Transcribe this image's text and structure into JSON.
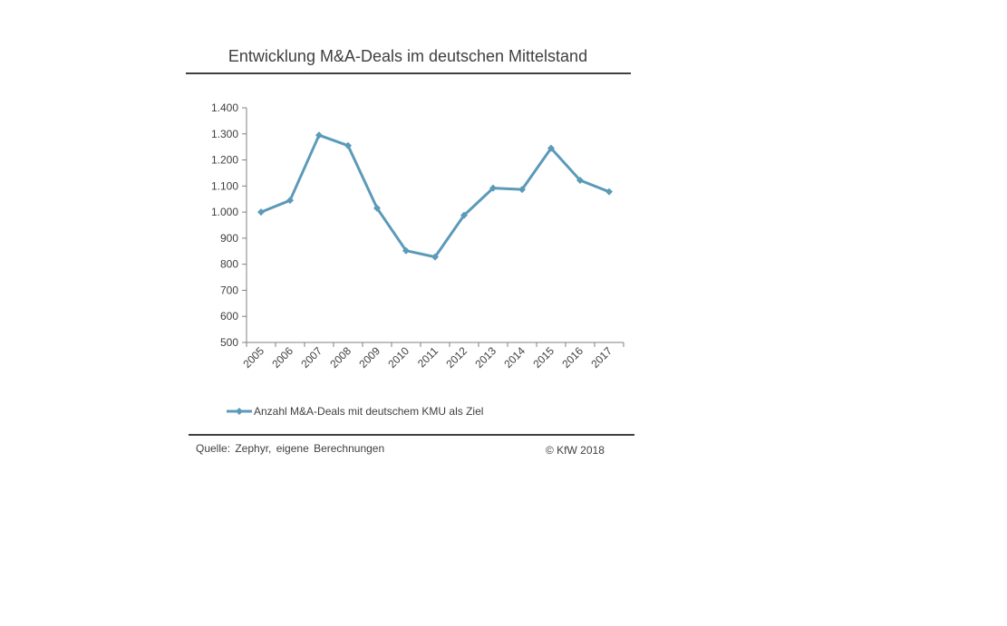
{
  "chart_data": {
    "type": "line",
    "title": "Entwicklung M&A-Deals im deutschen Mittelstand",
    "xlabel": "",
    "ylabel": "",
    "categories": [
      "2005",
      "2006",
      "2007",
      "2008",
      "2009",
      "2010",
      "2011",
      "2012",
      "2013",
      "2014",
      "2015",
      "2016",
      "2017"
    ],
    "series": [
      {
        "name": "Anzahl M&A-Deals mit deutschem KMU als Ziel",
        "values": [
          1000,
          1045,
          1295,
          1255,
          1015,
          852,
          828,
          988,
          1092,
          1087,
          1245,
          1122,
          1078
        ],
        "color": "#5b9ab8"
      }
    ],
    "ylim": [
      500,
      1400
    ],
    "yticks": [
      500,
      600,
      700,
      800,
      900,
      1000,
      1100,
      1200,
      1300,
      1400
    ],
    "ytick_labels": [
      "500",
      "600",
      "700",
      "800",
      "900",
      "1.000",
      "1.100",
      "1.200",
      "1.300",
      "1.400"
    ],
    "grid": false,
    "legend_position": "bottom"
  },
  "footer": {
    "source": "Quelle: Zephyr, eigene Berechnungen",
    "copyright": "© KfW 2018"
  },
  "colors": {
    "text": "#404040",
    "axis": "#808080",
    "rule": "#404040"
  }
}
